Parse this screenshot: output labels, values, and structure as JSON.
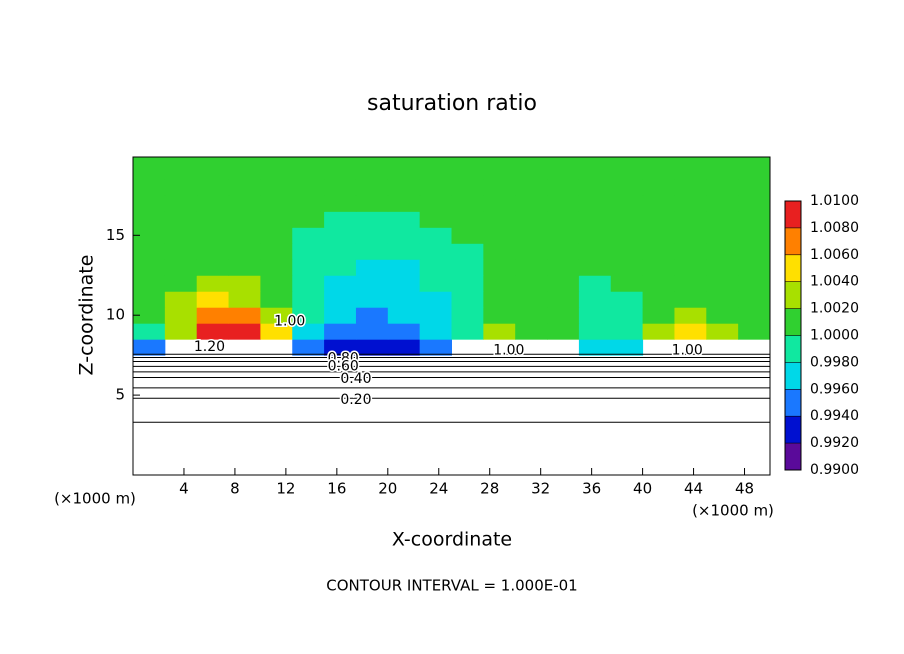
{
  "chart_data": {
    "type": "heatmap",
    "title": "saturation ratio",
    "x_label": "X-coordinate",
    "y_label": "Z-coordinate",
    "x_unit": "(×1000 m)",
    "footer": "CONTOUR INTERVAL = 1.000E-01",
    "xlim": [
      0,
      50
    ],
    "ylim": [
      0,
      19.9
    ],
    "xticks": [
      4,
      8,
      12,
      16,
      20,
      24,
      28,
      32,
      36,
      40,
      44,
      48
    ],
    "yticks": [
      5,
      10,
      15
    ],
    "xbins": [
      0,
      2.5,
      5,
      7.5,
      10,
      12.5,
      15,
      17.5,
      20,
      22.5,
      25,
      27.5,
      30,
      32.5,
      35,
      37.5,
      40,
      42.5,
      45,
      47.5,
      50
    ],
    "ybins": [
      7.5,
      8.5,
      9.5,
      10.5,
      11.5,
      12.5,
      13.5,
      14.5,
      15.5,
      16.5,
      17.5,
      18.5,
      19.9
    ],
    "z": [
      [
        0.995,
        null,
        null,
        null,
        null,
        0.994,
        0.993,
        0.992,
        0.993,
        0.995,
        null,
        null,
        null,
        null,
        0.996,
        0.997,
        null,
        null,
        null,
        null
      ],
      [
        0.998,
        1.003,
        1.008,
        1.009,
        1.004,
        0.996,
        0.995,
        0.994,
        0.995,
        0.996,
        0.999,
        1.003,
        1.001,
        1.0,
        0.999,
        0.999,
        1.002,
        1.004,
        1.002,
        1.0
      ],
      [
        1.0,
        1.003,
        1.007,
        1.006,
        1.002,
        0.998,
        0.996,
        0.995,
        0.996,
        0.997,
        0.999,
        1.001,
        1.0,
        1.0,
        0.999,
        0.999,
        1.001,
        1.002,
        1.001,
        1.0
      ],
      [
        1.001,
        1.002,
        1.004,
        1.003,
        1.001,
        0.998,
        0.997,
        0.996,
        0.996,
        0.997,
        0.999,
        1.0,
        1.0,
        1.0,
        0.999,
        0.999,
        1.0,
        1.001,
        1.001,
        1.0
      ],
      [
        1.001,
        1.001,
        1.002,
        1.002,
        1.0,
        0.999,
        0.997,
        0.997,
        0.997,
        0.998,
        0.999,
        1.0,
        1.0,
        1.0,
        0.999,
        1.0,
        1.0,
        1.001,
        1.001,
        1.001
      ],
      [
        1.001,
        1.001,
        1.001,
        1.001,
        1.0,
        0.999,
        0.998,
        0.997,
        0.997,
        0.998,
        0.999,
        1.0,
        1.0,
        1.0,
        1.0,
        1.0,
        1.0,
        1.001,
        1.001,
        1.001
      ],
      [
        1.001,
        1.001,
        1.001,
        1.001,
        1.0,
        0.999,
        0.998,
        0.998,
        0.998,
        0.999,
        0.999,
        1.0,
        1.0,
        1.0,
        1.0,
        1.0,
        1.0,
        1.001,
        1.001,
        1.001
      ],
      [
        1.001,
        1.001,
        1.001,
        1.001,
        1.0,
        0.999,
        0.999,
        0.999,
        0.999,
        0.999,
        1.0,
        1.0,
        1.0,
        1.0,
        1.0,
        1.0,
        1.0,
        1.001,
        1.001,
        1.001
      ],
      [
        1.001,
        1.001,
        1.001,
        1.0,
        1.0,
        1.0,
        0.999,
        0.999,
        0.999,
        1.0,
        1.0,
        1.0,
        1.0,
        1.0,
        1.0,
        1.0,
        1.0,
        1.0,
        1.001,
        1.001
      ],
      [
        1.001,
        1.001,
        1.001,
        1.001,
        1.0,
        1.0,
        1.0,
        1.0,
        1.0,
        1.0,
        1.0,
        1.0,
        1.0,
        1.0,
        1.0,
        1.0,
        1.0,
        1.001,
        1.001,
        1.001
      ],
      [
        1.001,
        1.001,
        1.001,
        1.001,
        1.001,
        1.0,
        1.0,
        1.0,
        1.0,
        1.0,
        1.0,
        1.001,
        1.0,
        1.0,
        1.0,
        1.0,
        1.001,
        1.001,
        1.001,
        1.001
      ],
      [
        1.001,
        1.001,
        1.001,
        1.001,
        1.001,
        1.001,
        1.0,
        1.0,
        1.0,
        1.0,
        1.001,
        1.001,
        1.001,
        1.0,
        1.0,
        1.001,
        1.001,
        1.001,
        1.001,
        1.001
      ]
    ],
    "colorbar_ticks": [
      {
        "value": 0.99,
        "label": "0.9900"
      },
      {
        "value": 0.992,
        "label": "0.9920"
      },
      {
        "value": 0.994,
        "label": "0.9940"
      },
      {
        "value": 0.996,
        "label": "0.9960"
      },
      {
        "value": 0.998,
        "label": "0.9980"
      },
      {
        "value": 1.0,
        "label": "1.0000"
      },
      {
        "value": 1.002,
        "label": "1.0020"
      },
      {
        "value": 1.004,
        "label": "1.0040"
      },
      {
        "value": 1.006,
        "label": "1.0060"
      },
      {
        "value": 1.008,
        "label": "1.0080"
      },
      {
        "value": 1.01,
        "label": "1.0100"
      }
    ],
    "colors": [
      "#5a0a9a",
      "#0010d0",
      "#1a78ff",
      "#00d8e8",
      "#10e8a0",
      "#30d030",
      "#a8e000",
      "#ffe000",
      "#ff8000",
      "#e82020"
    ],
    "contours": {
      "levels": [
        0.9,
        0.8,
        0.7,
        0.6,
        0.5,
        0.4,
        0.3,
        0.2,
        0.1
      ],
      "z": [
        7.56,
        7.35,
        7.1,
        6.8,
        6.45,
        6.1,
        5.45,
        4.8,
        3.3
      ]
    },
    "contour_labels": [
      {
        "text": "1.20",
        "x": 6,
        "y": 8.0
      },
      {
        "text": "1.00",
        "x": 12.3,
        "y": 9.6
      },
      {
        "text": "0.80",
        "x": 16.5,
        "y": 7.3
      },
      {
        "text": "0.60",
        "x": 16.5,
        "y": 6.8
      },
      {
        "text": "0.40",
        "x": 17.5,
        "y": 6.0
      },
      {
        "text": "0.20",
        "x": 17.5,
        "y": 4.7
      },
      {
        "text": "1.00",
        "x": 29.5,
        "y": 7.8
      },
      {
        "text": "1.00",
        "x": 43.5,
        "y": 7.8
      }
    ]
  }
}
